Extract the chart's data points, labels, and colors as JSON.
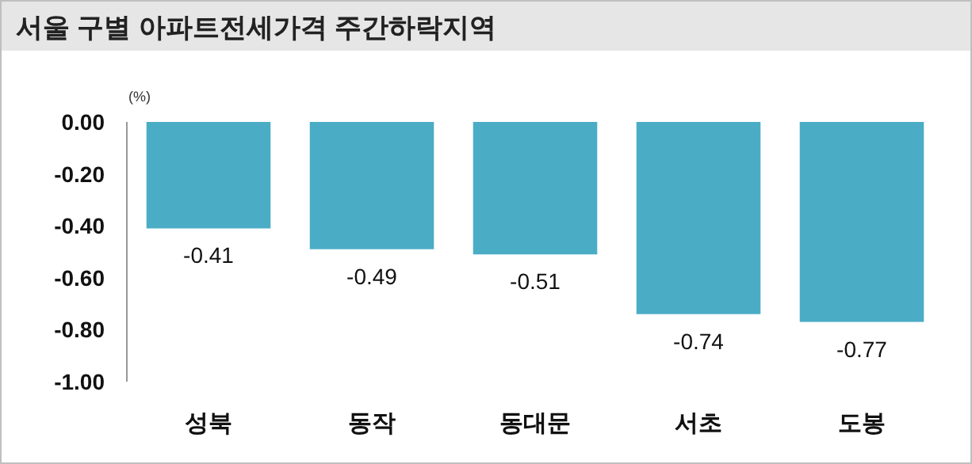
{
  "chart_data": {
    "type": "bar",
    "title": "서울 구별 아파트전세가격 주간하락지역",
    "ylabel": "(%)",
    "categories": [
      "성북",
      "동작",
      "동대문",
      "서초",
      "도봉"
    ],
    "values": [
      -0.41,
      -0.49,
      -0.51,
      -0.74,
      -0.77
    ],
    "color": "#4bacc6",
    "ylim": [
      -1,
      0
    ],
    "yticks": [
      {
        "value": 0,
        "label": "0.00"
      },
      {
        "value": -0.2,
        "label": "-0.20"
      },
      {
        "value": -0.4,
        "label": "-0.40"
      },
      {
        "value": -0.6,
        "label": "-0.60"
      },
      {
        "value": -0.8,
        "label": "-0.80"
      },
      {
        "value": -1,
        "label": "-1.00"
      }
    ],
    "data_labels": true
  }
}
